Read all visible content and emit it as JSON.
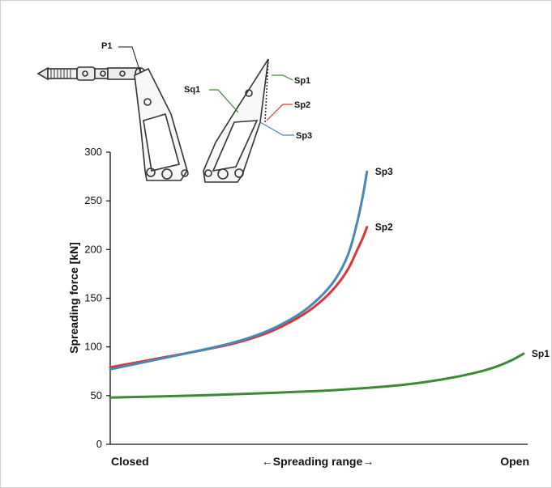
{
  "chart_data": {
    "type": "line",
    "ylabel": "Spreading force [kN]",
    "ylim": [
      0,
      300
    ],
    "yticks": [
      "0",
      "50",
      "100",
      "150",
      "200",
      "250",
      "300"
    ],
    "x_range_label": "←Spreading range→",
    "x_left_label": "Closed",
    "x_right_label": "Open",
    "xlim": [
      0,
      1
    ],
    "series": [
      {
        "name": "Sp1",
        "color": "#3c8a35",
        "x": [
          0,
          0.2,
          0.4,
          0.55,
          0.7,
          0.8,
          0.87,
          0.92,
          0.96,
          0.99
        ],
        "y": [
          48,
          50,
          53,
          56,
          61,
          67,
          73,
          79,
          86,
          93
        ]
      },
      {
        "name": "Sp2",
        "color": "#d93636",
        "x": [
          0,
          0.1,
          0.2,
          0.3,
          0.38,
          0.45,
          0.5,
          0.54,
          0.57,
          0.59,
          0.605,
          0.615
        ],
        "y": [
          79,
          87,
          95,
          104,
          115,
          130,
          145,
          162,
          180,
          198,
          212,
          223
        ]
      },
      {
        "name": "Sp3",
        "color": "#4a87b5",
        "x": [
          0,
          0.1,
          0.2,
          0.3,
          0.38,
          0.45,
          0.5,
          0.54,
          0.57,
          0.59,
          0.605,
          0.615
        ],
        "y": [
          77,
          86,
          95,
          105,
          117,
          133,
          150,
          170,
          195,
          225,
          255,
          280
        ]
      }
    ]
  },
  "diagram_labels": {
    "p1": "P1",
    "sq1": "Sq1",
    "sp1": "Sp1",
    "sp2": "Sp2",
    "sp3": "Sp3"
  }
}
